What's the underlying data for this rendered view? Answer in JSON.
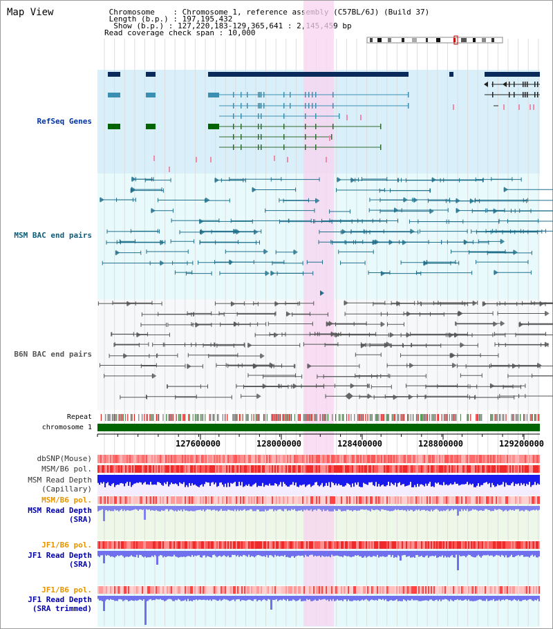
{
  "app": {
    "title": "Map View"
  },
  "header": {
    "chromosome": " Chromosome    : Chromosome 1, reference assembly (C57BL/6J) (Build 37)",
    "length": " Length (b.p.) : 197,195,432",
    "show": "  Show (b.p.) : 127,220,183-129,365,641 : 2,145,459 bp",
    "coverage": "Read coverage check span : 10,000"
  },
  "tracks": {
    "refseq": "RefSeq Genes",
    "msm_bac": "MSM BAC end pairs",
    "b6n_bac": "B6N BAC end pairs",
    "repeat": "Repeat",
    "chromosome": "chromosome 1",
    "dbsnp": "dbSNP(Mouse)",
    "msm_b6_pol_1": "MSM/B6 pol.",
    "msm_read_depth_cap": "MSM Read Depth\n(Capillary)",
    "msm_b6_pol_2": "MSM/B6 pol.",
    "msm_read_depth_sra": "MSM Read Depth\n(SRA)",
    "jf1_b6_pol_1": "JF1/B6 pol.",
    "jf1_read_depth_sra": "JF1 Read Depth\n(SRA)",
    "jf1_b6_pol_2": "JF1/B6 pol.",
    "jf1_read_depth_trim": "JF1 Read Depth\n(SRA trimmed)"
  },
  "axis": {
    "ticks": [
      "127600000",
      "128000000",
      "128400000",
      "128800000",
      "129200000"
    ]
  },
  "colors": {
    "refseq_bg": "#d9f0fa",
    "msm_bg": "#e8fafb",
    "b6n_bg": "#f6f8fa",
    "highlight": "#f8d4f0",
    "chrom": "#006400",
    "navy": "#0a2a5c",
    "msm_line": "#1f6f8b",
    "b6n_line": "#555555",
    "refseq_label": "#0033aa",
    "msm_label": "#0c5c78",
    "orange": "#e69500",
    "blue_label": "#0000aa"
  }
}
